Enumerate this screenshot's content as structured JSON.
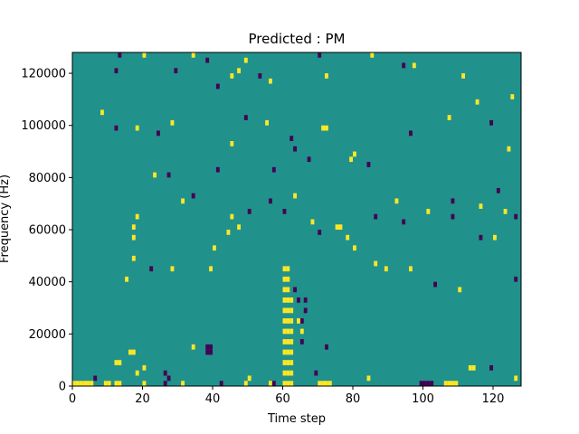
{
  "chart_data": {
    "type": "heatmap",
    "title": "Predicted : PM",
    "xlabel": "Time step",
    "ylabel": "Frequency (Hz)",
    "xlim": [
      0,
      128
    ],
    "ylim": [
      0,
      128000
    ],
    "x_ticks": [
      0,
      20,
      40,
      60,
      80,
      100,
      120
    ],
    "y_ticks": [
      0,
      20000,
      40000,
      60000,
      80000,
      100000,
      120000
    ],
    "x_tick_labels": [
      "0",
      "20",
      "40",
      "60",
      "80",
      "100",
      "120"
    ],
    "y_tick_labels": [
      "0",
      "20000",
      "40000",
      "60000",
      "80000",
      "100000",
      "120000"
    ],
    "grid": false,
    "levels": [
      -1,
      0,
      1
    ],
    "colormap": {
      "-1": "#440154",
      "0": "#21918c",
      "1": "#fde725"
    },
    "background_level": 0,
    "cell_width_time_steps": 1,
    "cell_height_hz": 2000,
    "cells": [
      {
        "t": 0,
        "f": 0,
        "level": 1
      },
      {
        "t": 1,
        "f": 0,
        "level": 1
      },
      {
        "t": 2,
        "f": 0,
        "level": 1
      },
      {
        "t": 3,
        "f": 0,
        "level": 1
      },
      {
        "t": 4,
        "f": 0,
        "level": 1
      },
      {
        "t": 5,
        "f": 0,
        "level": 1
      },
      {
        "t": 6,
        "f": 2000,
        "level": -1
      },
      {
        "t": 9,
        "f": 0,
        "level": 1
      },
      {
        "t": 10,
        "f": 0,
        "level": 1
      },
      {
        "t": 12,
        "f": 8000,
        "level": 1
      },
      {
        "t": 13,
        "f": 8000,
        "level": 1
      },
      {
        "t": 12,
        "f": 0,
        "level": 1
      },
      {
        "t": 13,
        "f": 0,
        "level": 1
      },
      {
        "t": 16,
        "f": 12000,
        "level": 1
      },
      {
        "t": 17,
        "f": 12000,
        "level": 1
      },
      {
        "t": 18,
        "f": 4000,
        "level": 1
      },
      {
        "t": 20,
        "f": 0,
        "level": 1
      },
      {
        "t": 20,
        "f": 6000,
        "level": 1
      },
      {
        "t": 26,
        "f": 0,
        "level": -1
      },
      {
        "t": 26,
        "f": 4000,
        "level": -1
      },
      {
        "t": 27,
        "f": 2000,
        "level": -1
      },
      {
        "t": 31,
        "f": 0,
        "level": 1
      },
      {
        "t": 34,
        "f": 14000,
        "level": 1
      },
      {
        "t": 38,
        "f": 14000,
        "level": -1
      },
      {
        "t": 39,
        "f": 14000,
        "level": -1
      },
      {
        "t": 38,
        "f": 12000,
        "level": -1
      },
      {
        "t": 39,
        "f": 12000,
        "level": -1
      },
      {
        "t": 42,
        "f": 0,
        "level": -1
      },
      {
        "t": 49,
        "f": 0,
        "level": 1
      },
      {
        "t": 50,
        "f": 2000,
        "level": 1
      },
      {
        "t": 56,
        "f": 0,
        "level": 1
      },
      {
        "t": 57,
        "f": 0,
        "level": -1
      },
      {
        "t": 60,
        "f": 0,
        "level": 1
      },
      {
        "t": 60,
        "f": 4000,
        "level": 1
      },
      {
        "t": 60,
        "f": 8000,
        "level": 1
      },
      {
        "t": 60,
        "f": 12000,
        "level": 1
      },
      {
        "t": 60,
        "f": 16000,
        "level": 1
      },
      {
        "t": 60,
        "f": 20000,
        "level": 1
      },
      {
        "t": 60,
        "f": 24000,
        "level": 1
      },
      {
        "t": 60,
        "f": 28000,
        "level": 1
      },
      {
        "t": 60,
        "f": 32000,
        "level": 1
      },
      {
        "t": 60,
        "f": 36000,
        "level": 1
      },
      {
        "t": 60,
        "f": 40000,
        "level": 1
      },
      {
        "t": 60,
        "f": 44000,
        "level": 1
      },
      {
        "t": 61,
        "f": 0,
        "level": 1
      },
      {
        "t": 61,
        "f": 4000,
        "level": 1
      },
      {
        "t": 61,
        "f": 8000,
        "level": 1
      },
      {
        "t": 61,
        "f": 12000,
        "level": 1
      },
      {
        "t": 61,
        "f": 16000,
        "level": 1
      },
      {
        "t": 61,
        "f": 20000,
        "level": 1
      },
      {
        "t": 61,
        "f": 24000,
        "level": 1
      },
      {
        "t": 61,
        "f": 28000,
        "level": 1
      },
      {
        "t": 61,
        "f": 32000,
        "level": 1
      },
      {
        "t": 61,
        "f": 36000,
        "level": 1
      },
      {
        "t": 61,
        "f": 40000,
        "level": 1
      },
      {
        "t": 61,
        "f": 44000,
        "level": 1
      },
      {
        "t": 62,
        "f": 0,
        "level": 1
      },
      {
        "t": 62,
        "f": 4000,
        "level": 1
      },
      {
        "t": 62,
        "f": 8000,
        "level": 1
      },
      {
        "t": 62,
        "f": 12000,
        "level": 1
      },
      {
        "t": 62,
        "f": 16000,
        "level": 1
      },
      {
        "t": 62,
        "f": 20000,
        "level": 1
      },
      {
        "t": 62,
        "f": 24000,
        "level": 1
      },
      {
        "t": 62,
        "f": 28000,
        "level": 1
      },
      {
        "t": 62,
        "f": 32000,
        "level": 1
      },
      {
        "t": 63,
        "f": 36000,
        "level": -1
      },
      {
        "t": 64,
        "f": 32000,
        "level": -1
      },
      {
        "t": 65,
        "f": 24000,
        "level": -1
      },
      {
        "t": 66,
        "f": 28000,
        "level": -1
      },
      {
        "t": 66,
        "f": 32000,
        "level": -1
      },
      {
        "t": 64,
        "f": 24000,
        "level": 1
      },
      {
        "t": 65,
        "f": 20000,
        "level": 1
      },
      {
        "t": 65,
        "f": 16000,
        "level": -1
      },
      {
        "t": 69,
        "f": 4000,
        "level": -1
      },
      {
        "t": 70,
        "f": 0,
        "level": 1
      },
      {
        "t": 71,
        "f": 0,
        "level": 1
      },
      {
        "t": 72,
        "f": 0,
        "level": 1
      },
      {
        "t": 73,
        "f": 0,
        "level": 1
      },
      {
        "t": 72,
        "f": 14000,
        "level": -1
      },
      {
        "t": 84,
        "f": 2000,
        "level": 1
      },
      {
        "t": 99,
        "f": 0,
        "level": -1
      },
      {
        "t": 100,
        "f": 0,
        "level": -1
      },
      {
        "t": 101,
        "f": 0,
        "level": -1
      },
      {
        "t": 102,
        "f": 0,
        "level": -1
      },
      {
        "t": 106,
        "f": 0,
        "level": 1
      },
      {
        "t": 107,
        "f": 0,
        "level": 1
      },
      {
        "t": 108,
        "f": 0,
        "level": 1
      },
      {
        "t": 109,
        "f": 0,
        "level": 1
      },
      {
        "t": 113,
        "f": 6000,
        "level": 1
      },
      {
        "t": 114,
        "f": 6000,
        "level": 1
      },
      {
        "t": 119,
        "f": 6000,
        "level": -1
      },
      {
        "t": 126,
        "f": 2000,
        "level": 1
      },
      {
        "t": 15,
        "f": 40000,
        "level": 1
      },
      {
        "t": 17,
        "f": 48000,
        "level": 1
      },
      {
        "t": 17,
        "f": 56000,
        "level": 1
      },
      {
        "t": 17,
        "f": 60000,
        "level": 1
      },
      {
        "t": 18,
        "f": 64000,
        "level": 1
      },
      {
        "t": 22,
        "f": 44000,
        "level": -1
      },
      {
        "t": 28,
        "f": 44000,
        "level": 1
      },
      {
        "t": 39,
        "f": 44000,
        "level": 1
      },
      {
        "t": 40,
        "f": 52000,
        "level": 1
      },
      {
        "t": 44,
        "f": 58000,
        "level": 1
      },
      {
        "t": 45,
        "f": 64000,
        "level": 1
      },
      {
        "t": 47,
        "f": 60000,
        "level": 1
      },
      {
        "t": 50,
        "f": 66000,
        "level": -1
      },
      {
        "t": 56,
        "f": 70000,
        "level": -1
      },
      {
        "t": 60,
        "f": 66000,
        "level": -1
      },
      {
        "t": 68,
        "f": 62000,
        "level": 1
      },
      {
        "t": 70,
        "f": 58000,
        "level": -1
      },
      {
        "t": 75,
        "f": 60000,
        "level": 1
      },
      {
        "t": 76,
        "f": 60000,
        "level": 1
      },
      {
        "t": 78,
        "f": 56000,
        "level": 1
      },
      {
        "t": 80,
        "f": 52000,
        "level": 1
      },
      {
        "t": 86,
        "f": 64000,
        "level": -1
      },
      {
        "t": 94,
        "f": 62000,
        "level": -1
      },
      {
        "t": 101,
        "f": 66000,
        "level": 1
      },
      {
        "t": 108,
        "f": 64000,
        "level": -1
      },
      {
        "t": 116,
        "f": 68000,
        "level": 1
      },
      {
        "t": 123,
        "f": 66000,
        "level": 1
      },
      {
        "t": 126,
        "f": 64000,
        "level": -1
      },
      {
        "t": 120,
        "f": 56000,
        "level": 1
      },
      {
        "t": 116,
        "f": 56000,
        "level": -1
      },
      {
        "t": 96,
        "f": 44000,
        "level": 1
      },
      {
        "t": 89,
        "f": 44000,
        "level": 1
      },
      {
        "t": 86,
        "f": 46000,
        "level": 1
      },
      {
        "t": 103,
        "f": 38000,
        "level": -1
      },
      {
        "t": 110,
        "f": 36000,
        "level": 1
      },
      {
        "t": 126,
        "f": 40000,
        "level": -1
      },
      {
        "t": 12,
        "f": 120000,
        "level": -1
      },
      {
        "t": 13,
        "f": 126000,
        "level": -1
      },
      {
        "t": 20,
        "f": 126000,
        "level": 1
      },
      {
        "t": 29,
        "f": 120000,
        "level": -1
      },
      {
        "t": 34,
        "f": 126000,
        "level": 1
      },
      {
        "t": 38,
        "f": 124000,
        "level": -1
      },
      {
        "t": 41,
        "f": 114000,
        "level": -1
      },
      {
        "t": 45,
        "f": 118000,
        "level": 1
      },
      {
        "t": 47,
        "f": 120000,
        "level": 1
      },
      {
        "t": 49,
        "f": 124000,
        "level": 1
      },
      {
        "t": 53,
        "f": 118000,
        "level": -1
      },
      {
        "t": 56,
        "f": 116000,
        "level": 1
      },
      {
        "t": 70,
        "f": 126000,
        "level": -1
      },
      {
        "t": 72,
        "f": 118000,
        "level": 1
      },
      {
        "t": 85,
        "f": 126000,
        "level": 1
      },
      {
        "t": 94,
        "f": 122000,
        "level": -1
      },
      {
        "t": 97,
        "f": 122000,
        "level": 1
      },
      {
        "t": 111,
        "f": 118000,
        "level": 1
      },
      {
        "t": 125,
        "f": 110000,
        "level": 1
      },
      {
        "t": 8,
        "f": 104000,
        "level": 1
      },
      {
        "t": 12,
        "f": 98000,
        "level": -1
      },
      {
        "t": 18,
        "f": 98000,
        "level": 1
      },
      {
        "t": 24,
        "f": 96000,
        "level": -1
      },
      {
        "t": 28,
        "f": 100000,
        "level": 1
      },
      {
        "t": 49,
        "f": 102000,
        "level": -1
      },
      {
        "t": 55,
        "f": 100000,
        "level": 1
      },
      {
        "t": 62,
        "f": 94000,
        "level": -1
      },
      {
        "t": 63,
        "f": 90000,
        "level": -1
      },
      {
        "t": 71,
        "f": 98000,
        "level": 1
      },
      {
        "t": 72,
        "f": 98000,
        "level": 1
      },
      {
        "t": 80,
        "f": 88000,
        "level": 1
      },
      {
        "t": 84,
        "f": 84000,
        "level": -1
      },
      {
        "t": 96,
        "f": 96000,
        "level": -1
      },
      {
        "t": 107,
        "f": 102000,
        "level": 1
      },
      {
        "t": 115,
        "f": 108000,
        "level": 1
      },
      {
        "t": 119,
        "f": 100000,
        "level": -1
      },
      {
        "t": 23,
        "f": 80000,
        "level": 1
      },
      {
        "t": 27,
        "f": 80000,
        "level": -1
      },
      {
        "t": 31,
        "f": 70000,
        "level": 1
      },
      {
        "t": 34,
        "f": 72000,
        "level": -1
      },
      {
        "t": 41,
        "f": 82000,
        "level": -1
      },
      {
        "t": 45,
        "f": 92000,
        "level": 1
      },
      {
        "t": 57,
        "f": 82000,
        "level": -1
      },
      {
        "t": 63,
        "f": 72000,
        "level": 1
      },
      {
        "t": 67,
        "f": 86000,
        "level": -1
      },
      {
        "t": 79,
        "f": 86000,
        "level": 1
      },
      {
        "t": 92,
        "f": 70000,
        "level": 1
      },
      {
        "t": 108,
        "f": 70000,
        "level": -1
      },
      {
        "t": 121,
        "f": 74000,
        "level": -1
      },
      {
        "t": 124,
        "f": 90000,
        "level": 1
      }
    ]
  }
}
